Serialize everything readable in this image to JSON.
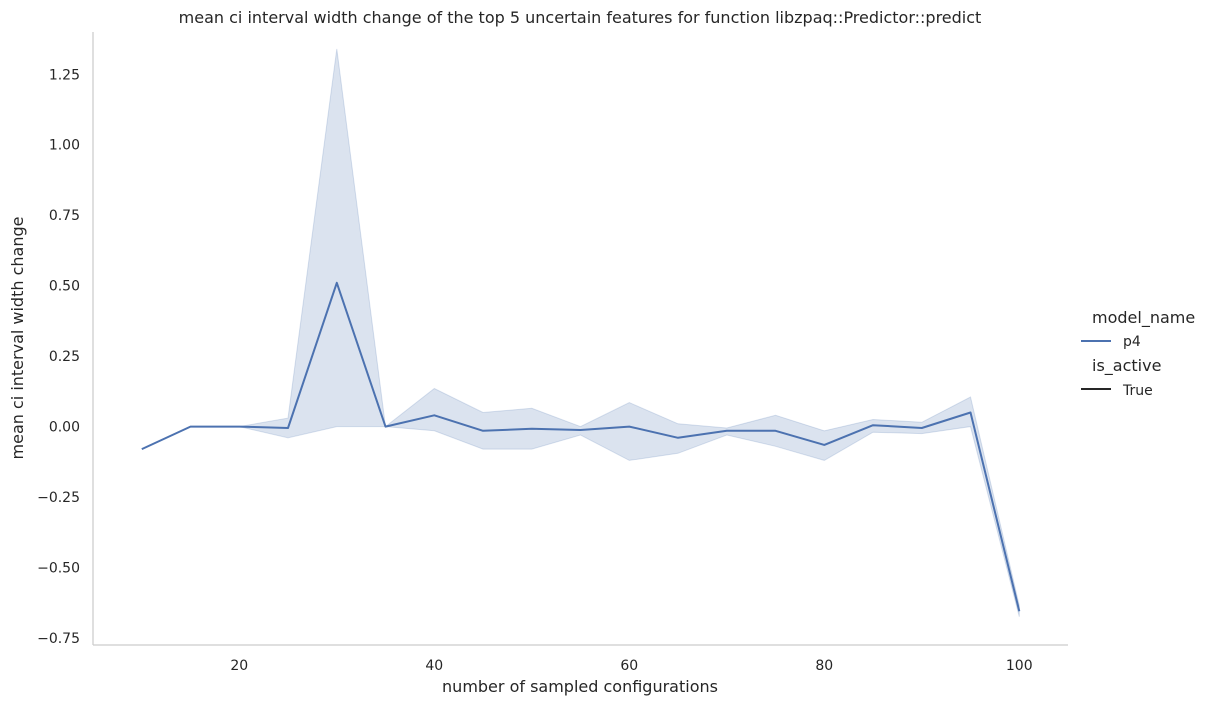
{
  "chart_data": {
    "type": "line",
    "title": "mean ci interval width change of the top 5 uncertain features for function libzpaq::Predictor::predict",
    "xlabel": "number of sampled configurations",
    "ylabel": "mean ci interval width change",
    "xlim": [
      5,
      105
    ],
    "ylim": [
      -0.775,
      1.4
    ],
    "xticks": [
      20,
      40,
      60,
      80,
      100
    ],
    "yticks": [
      -0.75,
      -0.5,
      -0.25,
      0.0,
      0.25,
      0.5,
      0.75,
      1.0,
      1.25
    ],
    "grid": false,
    "legend_position": "right",
    "colors": {
      "series": "#4c72b0",
      "band": "#4c72b0",
      "axis": "#cccccc"
    },
    "x": [
      10,
      15,
      20,
      25,
      30,
      35,
      40,
      45,
      50,
      55,
      60,
      65,
      70,
      75,
      80,
      85,
      90,
      95,
      100
    ],
    "series": [
      {
        "name": "p4",
        "values": [
          -0.08,
          0.0,
          0.0,
          -0.005,
          0.51,
          0.0,
          0.04,
          -0.015,
          -0.008,
          -0.012,
          0.0,
          -0.04,
          -0.015,
          -0.015,
          -0.065,
          0.005,
          -0.005,
          0.05,
          -0.655
        ],
        "ci_lower": [
          -0.08,
          0.0,
          0.0,
          -0.04,
          0.0,
          0.0,
          -0.015,
          -0.08,
          -0.08,
          -0.03,
          -0.12,
          -0.095,
          -0.03,
          -0.07,
          -0.12,
          -0.02,
          -0.025,
          0.0,
          -0.675
        ],
        "ci_upper": [
          -0.08,
          0.0,
          0.0,
          0.03,
          1.34,
          0.0,
          0.135,
          0.05,
          0.065,
          0.0,
          0.085,
          0.01,
          -0.005,
          0.04,
          -0.015,
          0.025,
          0.015,
          0.105,
          -0.635
        ]
      }
    ],
    "legend": {
      "title1": "model_name",
      "entry1": "p4",
      "title2": "is_active",
      "entry2": "True"
    }
  }
}
